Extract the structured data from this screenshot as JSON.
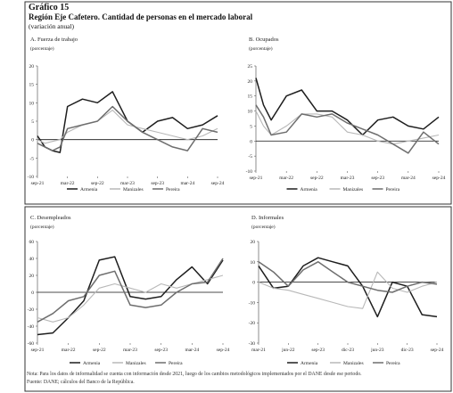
{
  "figure": {
    "number": "Gráfico 15",
    "title": "Región Eje Cafetero. Cantidad de personas en el mercado laboral",
    "subtitle": "(variación anual)",
    "note": "Nota: Para los datos de informalidad se cuenta con información desde 2021, luego de los cambios metodológicos implementados por el DANE desde ese periodo.",
    "source": "Fuente: DANE; cálculos del Banco de la República."
  },
  "colors": {
    "Armenia": "#1e1e1e",
    "Manizales": "#b8b8b8",
    "Pereira": "#6e6e6e"
  },
  "chart_data": [
    {
      "id": "A",
      "type": "line",
      "title": "A. Fuerza de trabajo",
      "ylabel": "(porcentaje)",
      "ylim": [
        -10,
        20
      ],
      "yticks": [
        -10,
        -5,
        0,
        5,
        10,
        15,
        20
      ],
      "categories": [
        "sep-21",
        "mar-22",
        "sep-22",
        "mar-23",
        "sep-23",
        "mar-24",
        "sep-24"
      ],
      "xmax": 12,
      "series": [
        {
          "name": "Armenia",
          "x": [
            0,
            0.5,
            1,
            1.5,
            2,
            3,
            4,
            5,
            6,
            7,
            8,
            9,
            10,
            11,
            12
          ],
          "values": [
            1,
            -2,
            -3,
            -3.5,
            9,
            11,
            10,
            13,
            5,
            2,
            5,
            6,
            3,
            4,
            6.5
          ]
        },
        {
          "name": "Manizales",
          "x": [
            0,
            0.5,
            1,
            1.5,
            2,
            3,
            4,
            5,
            6,
            7,
            8,
            9,
            10,
            11,
            12
          ],
          "values": [
            0,
            -1,
            -0.5,
            0,
            2,
            4,
            5,
            8,
            4,
            3,
            2,
            1,
            0,
            1,
            3
          ]
        },
        {
          "name": "Pereira",
          "x": [
            0,
            0.5,
            1,
            1.5,
            2,
            3,
            4,
            5,
            6,
            7,
            8,
            9,
            10,
            11,
            12
          ],
          "values": [
            -1,
            -2,
            -3,
            -2,
            3,
            4,
            5,
            9,
            5,
            2,
            0,
            -2,
            -3,
            3,
            2
          ]
        }
      ],
      "legend": "bottom"
    },
    {
      "id": "B",
      "type": "line",
      "title": "B. Ocupados",
      "ylabel": "(porcentaje)",
      "ylim": [
        -10,
        25
      ],
      "yticks": [
        -10,
        -5,
        0,
        5,
        10,
        15,
        20,
        25
      ],
      "categories": [
        "sep-21",
        "mar-22",
        "sep-22",
        "mar-23",
        "sep-23",
        "mar-24",
        "sep-24"
      ],
      "xmax": 12,
      "series": [
        {
          "name": "Armenia",
          "x": [
            0,
            0.5,
            1,
            2,
            3,
            4,
            5,
            6,
            7,
            8,
            9,
            10,
            11,
            12
          ],
          "values": [
            21,
            12,
            7,
            15,
            17,
            10,
            10,
            7,
            2,
            7,
            8,
            5,
            4,
            8
          ]
        },
        {
          "name": "Manizales",
          "x": [
            0,
            0.5,
            1,
            2,
            3,
            4,
            5,
            6,
            7,
            8,
            9,
            10,
            11,
            12
          ],
          "values": [
            10,
            5,
            2,
            5,
            9,
            9,
            8,
            3,
            2,
            0,
            -1,
            0,
            1,
            2
          ]
        },
        {
          "name": "Pereira",
          "x": [
            0,
            0.5,
            1,
            2,
            3,
            4,
            5,
            6,
            7,
            8,
            9,
            10,
            11,
            12
          ],
          "values": [
            12,
            8,
            2,
            3,
            9,
            8,
            9,
            6,
            4,
            2,
            -1,
            -4,
            3,
            -1
          ]
        }
      ],
      "legend": "bottom"
    },
    {
      "id": "C",
      "type": "line",
      "title": "C. Desempleados",
      "ylabel": "(porcentaje)",
      "ylim": [
        -60,
        60
      ],
      "yticks": [
        -60,
        -40,
        -20,
        0,
        20,
        40,
        60
      ],
      "categories": [
        "sep-21",
        "mar-22",
        "sep-22",
        "mar-23",
        "sep-23",
        "mar-24",
        "sep-24"
      ],
      "xmax": 12,
      "series": [
        {
          "name": "Armenia",
          "x": [
            0,
            1,
            2,
            3,
            4,
            5,
            6,
            7,
            8,
            9,
            10,
            11,
            12
          ],
          "values": [
            -50,
            -48,
            -30,
            -10,
            38,
            42,
            -5,
            -8,
            -5,
            15,
            30,
            10,
            38
          ]
        },
        {
          "name": "Manizales",
          "x": [
            0,
            1,
            2,
            3,
            4,
            5,
            6,
            7,
            8,
            9,
            10,
            11,
            12
          ],
          "values": [
            -30,
            -35,
            -30,
            -15,
            5,
            10,
            5,
            0,
            10,
            5,
            10,
            15,
            20
          ]
        },
        {
          "name": "Pereira",
          "x": [
            0,
            1,
            2,
            3,
            4,
            5,
            6,
            7,
            8,
            9,
            10,
            11,
            12
          ],
          "values": [
            -35,
            -25,
            -10,
            -5,
            20,
            25,
            -15,
            -18,
            -15,
            0,
            10,
            12,
            40
          ]
        }
      ],
      "legend": "bottom"
    },
    {
      "id": "D",
      "type": "line",
      "title": "D. Informales",
      "ylabel": "(porcentaje)",
      "ylim": [
        -30,
        20
      ],
      "yticks": [
        -30,
        -20,
        -10,
        0,
        10,
        20
      ],
      "categories": [
        "mar-21",
        "jun-22",
        "sep-23",
        "dic-23",
        "jun-23",
        "dic-23",
        "sep-24"
      ],
      "xmax": 6,
      "series": [
        {
          "name": "Armenia",
          "x": [
            0,
            0.5,
            1,
            1.5,
            2,
            2.5,
            3,
            3.5,
            4,
            4.5,
            5,
            5.5,
            6
          ],
          "values": [
            8,
            -3,
            -2,
            8,
            12,
            10,
            8,
            -2,
            -17,
            0,
            -2,
            -16,
            -17
          ]
        },
        {
          "name": "Manizales",
          "x": [
            0,
            0.5,
            1,
            1.5,
            2,
            2.5,
            3,
            3.5,
            4,
            4.5,
            5,
            5.5,
            6
          ],
          "values": [
            0,
            -3,
            -4,
            -6,
            -8,
            -10,
            -12,
            -13,
            5,
            -3,
            -5,
            -2,
            0
          ]
        },
        {
          "name": "Pereira",
          "x": [
            0,
            0.5,
            1,
            1.5,
            2,
            2.5,
            3,
            3.5,
            4,
            4.5,
            5,
            5.5,
            6
          ],
          "values": [
            10,
            5,
            -2,
            6,
            10,
            5,
            0,
            -2,
            -4,
            -5,
            -2,
            0,
            -1
          ]
        }
      ],
      "legend": "bottom"
    }
  ]
}
